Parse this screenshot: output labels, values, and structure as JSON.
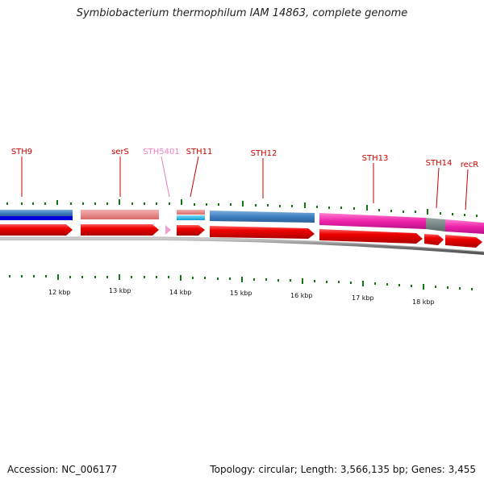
{
  "header": {
    "title": "Symbiobacterium thermophilum IAM 14863, complete genome"
  },
  "footer": {
    "accession": "Accession: NC_006177",
    "summary": "Topology: circular; Length: 3,566,135 bp; Genes: 3,455"
  },
  "genes": [
    {
      "id": "sth9",
      "label": "STH9",
      "color": "#cc0000"
    },
    {
      "id": "sers",
      "label": "serS",
      "color": "#cc0000"
    },
    {
      "id": "sth5401",
      "label": "STH5401",
      "color": "#e87fbf"
    },
    {
      "id": "sth11",
      "label": "STH11",
      "color": "#cc0000"
    },
    {
      "id": "sth12",
      "label": "STH12",
      "color": "#cc0000"
    },
    {
      "id": "sth13",
      "label": "STH13",
      "color": "#cc0000"
    },
    {
      "id": "sth14",
      "label": "STH14",
      "color": "#cc0000"
    },
    {
      "id": "recr",
      "label": "recR",
      "color": "#cc0000"
    }
  ],
  "scale_labels": [
    "12 kbp",
    "13 kbp",
    "14 kbp",
    "15 kbp",
    "16 kbp",
    "17 kbp",
    "18 kbp"
  ],
  "colors": {
    "gene_red": "#ee0000",
    "blue_feature": "#3f7fbf",
    "dark_blue": "#0000dd",
    "salmon": "#e08080",
    "cyan": "#33bbee",
    "magenta": "#ee22aa",
    "gray_block": "#6f7f7f",
    "tick_green": "#117711",
    "backbone": "#777777"
  }
}
